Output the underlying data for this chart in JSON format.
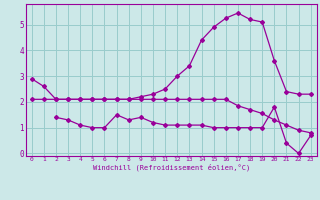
{
  "bg_color": "#cce8e8",
  "grid_color": "#99cccc",
  "line_color": "#990099",
  "xlabel": "Windchill (Refroidissement éolien,°C)",
  "xlim": [
    -0.5,
    23.5
  ],
  "ylim": [
    -0.1,
    5.8
  ],
  "yticks": [
    0,
    1,
    2,
    3,
    4,
    5
  ],
  "xticks": [
    0,
    1,
    2,
    3,
    4,
    5,
    6,
    7,
    8,
    9,
    10,
    11,
    12,
    13,
    14,
    15,
    16,
    17,
    18,
    19,
    20,
    21,
    22,
    23
  ],
  "curve1_x": [
    0,
    1,
    2,
    3,
    4,
    5,
    6,
    7,
    8,
    9,
    10,
    11,
    12,
    13,
    14,
    15,
    16,
    17,
    18,
    19,
    20,
    21,
    22,
    23
  ],
  "curve1_y": [
    2.9,
    2.6,
    2.1,
    2.1,
    2.1,
    2.1,
    2.1,
    2.1,
    2.1,
    2.2,
    2.3,
    2.5,
    3.0,
    3.4,
    4.4,
    4.9,
    5.25,
    5.45,
    5.2,
    5.1,
    3.6,
    2.4,
    2.3,
    2.3
  ],
  "curve2_x": [
    0,
    1,
    2,
    3,
    4,
    5,
    6,
    7,
    8,
    9,
    10,
    11,
    12,
    13,
    14,
    15,
    16,
    17,
    18,
    19,
    20,
    21,
    22,
    23
  ],
  "curve2_y": [
    2.1,
    2.1,
    2.1,
    2.1,
    2.1,
    2.1,
    2.1,
    2.1,
    2.1,
    2.1,
    2.1,
    2.1,
    2.1,
    2.1,
    2.1,
    2.1,
    2.1,
    1.85,
    1.7,
    1.55,
    1.3,
    1.1,
    0.9,
    0.8
  ],
  "curve3_x": [
    2,
    3,
    4,
    5,
    6,
    7,
    8,
    9,
    10,
    11,
    12,
    13,
    14,
    15,
    16,
    17,
    18,
    19,
    20,
    21,
    22,
    23
  ],
  "curve3_y": [
    1.4,
    1.3,
    1.1,
    1.0,
    1.0,
    1.5,
    1.3,
    1.4,
    1.2,
    1.1,
    1.1,
    1.1,
    1.1,
    1.0,
    1.0,
    1.0,
    1.0,
    1.0,
    1.8,
    0.4,
    0.0,
    0.7
  ]
}
